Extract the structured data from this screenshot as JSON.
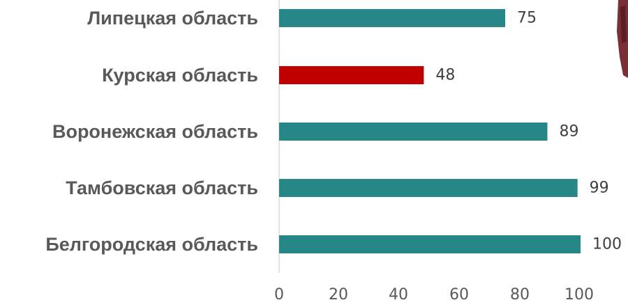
{
  "chart_data": {
    "type": "bar",
    "orientation": "horizontal",
    "categories": [
      "Липецкая область",
      "Курская область",
      "Воронежская область",
      "Тамбовская область",
      "Белгородская область"
    ],
    "values": [
      75,
      48,
      89,
      99,
      100
    ],
    "value_labels": [
      "75",
      "48",
      "89",
      "99",
      "100"
    ],
    "bar_colors": [
      "#278787",
      "#C00000",
      "#278787",
      "#278787",
      "#278787"
    ],
    "x_ticks": [
      "0",
      "20",
      "40",
      "60",
      "80",
      "100"
    ],
    "xlim": [
      0,
      100
    ],
    "grid": false,
    "title": "",
    "xlabel": "",
    "ylabel": ""
  },
  "colors": {
    "bar": "#278787",
    "highlight": "#C00000",
    "axis": "#D9D9D9"
  }
}
